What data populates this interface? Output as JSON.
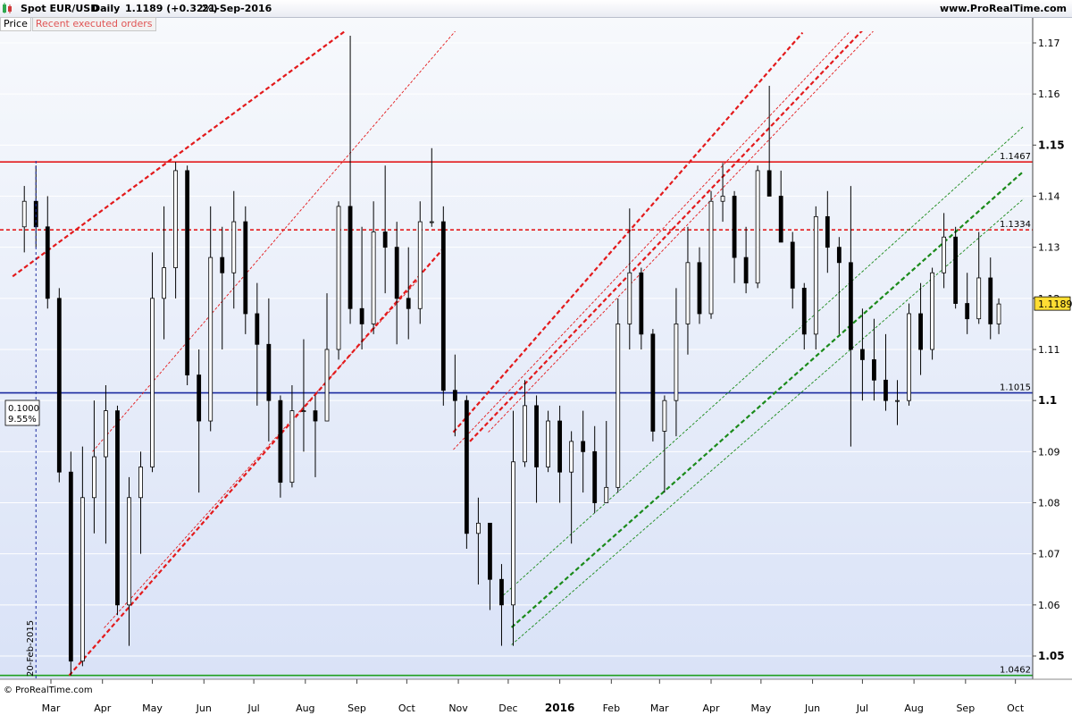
{
  "header": {
    "symbol": "Spot EUR/USD",
    "period": "Daily",
    "quote": "1.1189 (+0.32%)",
    "date": "21-Sep-2016",
    "site": "www.ProRealTime.com",
    "logo_icon": "candlestick-chart-icon"
  },
  "legend": {
    "price": "Price",
    "orders": "Recent executed orders"
  },
  "copyright": "© ProRealTime.com",
  "colors": {
    "support_red": "#e31a1c",
    "channel_green": "#1a8a1a",
    "blue_line": "#1a2aa0",
    "bottom_green": "#1fa01f",
    "candles": "#000000",
    "last_price_bg": "#ffdd33"
  },
  "chart_data": {
    "type": "candlestick",
    "title": "Spot EUR/USD Daily",
    "ylim": [
      1.0462,
      1.1745
    ],
    "yticks": [
      1.05,
      1.06,
      1.07,
      1.08,
      1.09,
      1.1,
      1.11,
      1.12,
      1.13,
      1.14,
      1.15,
      1.16,
      1.17
    ],
    "yticks_bold": [
      1.05,
      1.1,
      1.15
    ],
    "xticks": [
      {
        "label": "Mar",
        "date": "2015-03"
      },
      {
        "label": "Apr",
        "date": "2015-04"
      },
      {
        "label": "May",
        "date": "2015-05"
      },
      {
        "label": "Jun",
        "date": "2015-06"
      },
      {
        "label": "Jul",
        "date": "2015-07"
      },
      {
        "label": "Aug",
        "date": "2015-08"
      },
      {
        "label": "Sep",
        "date": "2015-09"
      },
      {
        "label": "Oct",
        "date": "2015-10"
      },
      {
        "label": "Nov",
        "date": "2015-11"
      },
      {
        "label": "Dec",
        "date": "2015-12"
      },
      {
        "label": "2016",
        "date": "2016-01",
        "bold": true
      },
      {
        "label": "Feb",
        "date": "2016-02"
      },
      {
        "label": "Mar",
        "date": "2016-03"
      },
      {
        "label": "Apr",
        "date": "2016-04"
      },
      {
        "label": "May",
        "date": "2016-05"
      },
      {
        "label": "Jun",
        "date": "2016-06"
      },
      {
        "label": "Jul",
        "date": "2016-07"
      },
      {
        "label": "Aug",
        "date": "2016-08"
      },
      {
        "label": "Sep",
        "date": "2016-09"
      },
      {
        "label": "Oct",
        "date": "2016-10"
      }
    ],
    "last_price": 1.1189,
    "horizontal_levels": [
      {
        "value": 1.1467,
        "label": "1.1467",
        "style": "solid",
        "color": "red"
      },
      {
        "value": 1.1334,
        "label": "1.1334",
        "style": "dashed",
        "color": "red"
      },
      {
        "value": 1.1015,
        "label": "1.1015",
        "style": "solid",
        "color": "blue"
      },
      {
        "value": 1.0462,
        "label": "1.0462",
        "style": "solid",
        "color": "green"
      }
    ],
    "vertical_marker": {
      "date": "2015-02-20",
      "label": "20-Feb-2015"
    },
    "measure_box": {
      "line1": "0.1000",
      "line2": "9.55%"
    },
    "trend_lines": [
      {
        "color": "red",
        "style": "dashed-thick",
        "from": [
          "2015-02-06",
          1.1243
        ],
        "to": [
          "2015-09-03",
          1.1745
        ]
      },
      {
        "color": "red",
        "style": "dashed-thin",
        "from": [
          "2015-03-26",
          1.09
        ],
        "to": [
          "2015-11-05",
          1.1745
        ]
      },
      {
        "color": "red",
        "style": "dashed-thick",
        "from": [
          "2015-03-12",
          1.0462
        ],
        "to": [
          "2015-10-22",
          1.1294
        ]
      },
      {
        "color": "red",
        "style": "dashed-thin",
        "from": [
          "2015-04-02",
          1.0555
        ],
        "to": [
          "2015-10-08",
          1.1237
        ]
      },
      {
        "color": "red",
        "style": "dashed-thick",
        "from": [
          "2015-10-29",
          1.0938
        ],
        "to": [
          "2016-05-26",
          1.172
        ]
      },
      {
        "color": "red",
        "style": "dashed-thin",
        "from": [
          "2015-10-29",
          1.0904
        ],
        "to": [
          "2016-06-30",
          1.1745
        ]
      },
      {
        "color": "red",
        "style": "dashed-thick",
        "from": [
          "2015-11-05",
          1.091
        ],
        "to": [
          "2016-07-07",
          1.1745
        ]
      },
      {
        "color": "red",
        "style": "dashed-thin",
        "from": [
          "2015-11-19",
          1.0938
        ],
        "to": [
          "2016-07-14",
          1.1745
        ]
      },
      {
        "color": "green",
        "style": "dashed-thin",
        "from": [
          "2015-11-26",
          1.0613
        ],
        "to": [
          "2016-10-06",
          1.1537
        ]
      },
      {
        "color": "green",
        "style": "dashed-thick",
        "from": [
          "2015-12-03",
          1.0556
        ],
        "to": [
          "2016-10-06",
          1.1449
        ]
      },
      {
        "color": "green",
        "style": "dashed-thin",
        "from": [
          "2015-12-03",
          1.0522
        ],
        "to": [
          "2016-10-06",
          1.1395
        ]
      }
    ],
    "candles": [
      {
        "d": "2015-02-13",
        "o": 1.134,
        "h": 1.142,
        "l": 1.129,
        "c": 1.139
      },
      {
        "d": "2015-02-20",
        "o": 1.139,
        "h": 1.146,
        "l": 1.13,
        "c": 1.134
      },
      {
        "d": "2015-02-27",
        "o": 1.134,
        "h": 1.14,
        "l": 1.118,
        "c": 1.12
      },
      {
        "d": "2015-03-06",
        "o": 1.12,
        "h": 1.122,
        "l": 1.084,
        "c": 1.086
      },
      {
        "d": "2015-03-13",
        "o": 1.086,
        "h": 1.09,
        "l": 1.0462,
        "c": 1.049
      },
      {
        "d": "2015-03-20",
        "o": 1.049,
        "h": 1.091,
        "l": 1.048,
        "c": 1.081
      },
      {
        "d": "2015-03-27",
        "o": 1.081,
        "h": 1.1,
        "l": 1.074,
        "c": 1.089
      },
      {
        "d": "2015-04-03",
        "o": 1.089,
        "h": 1.103,
        "l": 1.072,
        "c": 1.098
      },
      {
        "d": "2015-04-10",
        "o": 1.098,
        "h": 1.099,
        "l": 1.058,
        "c": 1.06
      },
      {
        "d": "2015-04-17",
        "o": 1.06,
        "h": 1.085,
        "l": 1.052,
        "c": 1.081
      },
      {
        "d": "2015-04-24",
        "o": 1.081,
        "h": 1.09,
        "l": 1.07,
        "c": 1.087
      },
      {
        "d": "2015-05-01",
        "o": 1.087,
        "h": 1.129,
        "l": 1.086,
        "c": 1.12
      },
      {
        "d": "2015-05-08",
        "o": 1.12,
        "h": 1.138,
        "l": 1.112,
        "c": 1.126
      },
      {
        "d": "2015-05-15",
        "o": 1.126,
        "h": 1.1467,
        "l": 1.12,
        "c": 1.145
      },
      {
        "d": "2015-05-22",
        "o": 1.145,
        "h": 1.146,
        "l": 1.103,
        "c": 1.105
      },
      {
        "d": "2015-05-29",
        "o": 1.105,
        "h": 1.11,
        "l": 1.082,
        "c": 1.096
      },
      {
        "d": "2015-06-05",
        "o": 1.096,
        "h": 1.138,
        "l": 1.094,
        "c": 1.128
      },
      {
        "d": "2015-06-12",
        "o": 1.128,
        "h": 1.134,
        "l": 1.11,
        "c": 1.125
      },
      {
        "d": "2015-06-19",
        "o": 1.125,
        "h": 1.141,
        "l": 1.118,
        "c": 1.135
      },
      {
        "d": "2015-06-26",
        "o": 1.135,
        "h": 1.138,
        "l": 1.113,
        "c": 1.117
      },
      {
        "d": "2015-07-03",
        "o": 1.117,
        "h": 1.123,
        "l": 1.099,
        "c": 1.111
      },
      {
        "d": "2015-07-10",
        "o": 1.111,
        "h": 1.12,
        "l": 1.092,
        "c": 1.1
      },
      {
        "d": "2015-07-17",
        "o": 1.1,
        "h": 1.101,
        "l": 1.081,
        "c": 1.084
      },
      {
        "d": "2015-07-24",
        "o": 1.084,
        "h": 1.103,
        "l": 1.083,
        "c": 1.098
      },
      {
        "d": "2015-07-31",
        "o": 1.098,
        "h": 1.112,
        "l": 1.09,
        "c": 1.098
      },
      {
        "d": "2015-08-07",
        "o": 1.098,
        "h": 1.101,
        "l": 1.085,
        "c": 1.096
      },
      {
        "d": "2015-08-14",
        "o": 1.096,
        "h": 1.121,
        "l": 1.096,
        "c": 1.11
      },
      {
        "d": "2015-08-21",
        "o": 1.11,
        "h": 1.139,
        "l": 1.108,
        "c": 1.138
      },
      {
        "d": "2015-08-28",
        "o": 1.138,
        "h": 1.1714,
        "l": 1.115,
        "c": 1.118
      },
      {
        "d": "2015-09-04",
        "o": 1.118,
        "h": 1.134,
        "l": 1.11,
        "c": 1.115
      },
      {
        "d": "2015-09-11",
        "o": 1.115,
        "h": 1.139,
        "l": 1.113,
        "c": 1.133
      },
      {
        "d": "2015-09-18",
        "o": 1.133,
        "h": 1.146,
        "l": 1.121,
        "c": 1.13
      },
      {
        "d": "2015-09-25",
        "o": 1.13,
        "h": 1.135,
        "l": 1.111,
        "c": 1.12
      },
      {
        "d": "2015-10-02",
        "o": 1.12,
        "h": 1.13,
        "l": 1.112,
        "c": 1.118
      },
      {
        "d": "2015-10-09",
        "o": 1.118,
        "h": 1.139,
        "l": 1.115,
        "c": 1.135
      },
      {
        "d": "2015-10-16",
        "o": 1.135,
        "h": 1.1494,
        "l": 1.134,
        "c": 1.135
      },
      {
        "d": "2015-10-23",
        "o": 1.135,
        "h": 1.138,
        "l": 1.099,
        "c": 1.102
      },
      {
        "d": "2015-10-30",
        "o": 1.102,
        "h": 1.109,
        "l": 1.093,
        "c": 1.1
      },
      {
        "d": "2015-11-06",
        "o": 1.1,
        "h": 1.101,
        "l": 1.071,
        "c": 1.074
      },
      {
        "d": "2015-11-13",
        "o": 1.074,
        "h": 1.081,
        "l": 1.064,
        "c": 1.076
      },
      {
        "d": "2015-11-20",
        "o": 1.076,
        "h": 1.076,
        "l": 1.059,
        "c": 1.065
      },
      {
        "d": "2015-11-27",
        "o": 1.065,
        "h": 1.068,
        "l": 1.052,
        "c": 1.06
      },
      {
        "d": "2015-12-04",
        "o": 1.06,
        "h": 1.098,
        "l": 1.052,
        "c": 1.088
      },
      {
        "d": "2015-12-11",
        "o": 1.088,
        "h": 1.104,
        "l": 1.087,
        "c": 1.099
      },
      {
        "d": "2015-12-18",
        "o": 1.099,
        "h": 1.101,
        "l": 1.08,
        "c": 1.087
      },
      {
        "d": "2015-12-25",
        "o": 1.087,
        "h": 1.098,
        "l": 1.086,
        "c": 1.096
      },
      {
        "d": "2016-01-01",
        "o": 1.096,
        "h": 1.099,
        "l": 1.08,
        "c": 1.086
      },
      {
        "d": "2016-01-08",
        "o": 1.086,
        "h": 1.094,
        "l": 1.072,
        "c": 1.092
      },
      {
        "d": "2016-01-15",
        "o": 1.092,
        "h": 1.098,
        "l": 1.082,
        "c": 1.09
      },
      {
        "d": "2016-01-22",
        "o": 1.09,
        "h": 1.095,
        "l": 1.078,
        "c": 1.08
      },
      {
        "d": "2016-01-29",
        "o": 1.08,
        "h": 1.096,
        "l": 1.08,
        "c": 1.083
      },
      {
        "d": "2016-02-05",
        "o": 1.083,
        "h": 1.12,
        "l": 1.082,
        "c": 1.115
      },
      {
        "d": "2016-02-12",
        "o": 1.115,
        "h": 1.1376,
        "l": 1.11,
        "c": 1.125
      },
      {
        "d": "2016-02-19",
        "o": 1.125,
        "h": 1.126,
        "l": 1.11,
        "c": 1.113
      },
      {
        "d": "2016-02-26",
        "o": 1.113,
        "h": 1.114,
        "l": 1.092,
        "c": 1.094
      },
      {
        "d": "2016-03-04",
        "o": 1.094,
        "h": 1.101,
        "l": 1.082,
        "c": 1.1
      },
      {
        "d": "2016-03-11",
        "o": 1.1,
        "h": 1.122,
        "l": 1.093,
        "c": 1.115
      },
      {
        "d": "2016-03-18",
        "o": 1.115,
        "h": 1.134,
        "l": 1.109,
        "c": 1.127
      },
      {
        "d": "2016-03-25",
        "o": 1.127,
        "h": 1.13,
        "l": 1.115,
        "c": 1.117
      },
      {
        "d": "2016-04-01",
        "o": 1.117,
        "h": 1.141,
        "l": 1.116,
        "c": 1.139
      },
      {
        "d": "2016-04-08",
        "o": 1.139,
        "h": 1.1465,
        "l": 1.135,
        "c": 1.14
      },
      {
        "d": "2016-04-15",
        "o": 1.14,
        "h": 1.141,
        "l": 1.123,
        "c": 1.128
      },
      {
        "d": "2016-04-22",
        "o": 1.128,
        "h": 1.134,
        "l": 1.121,
        "c": 1.123
      },
      {
        "d": "2016-04-29",
        "o": 1.123,
        "h": 1.146,
        "l": 1.122,
        "c": 1.145
      },
      {
        "d": "2016-05-06",
        "o": 1.145,
        "h": 1.1616,
        "l": 1.14,
        "c": 1.14
      },
      {
        "d": "2016-05-13",
        "o": 1.14,
        "h": 1.145,
        "l": 1.131,
        "c": 1.131
      },
      {
        "d": "2016-05-20",
        "o": 1.131,
        "h": 1.133,
        "l": 1.118,
        "c": 1.122
      },
      {
        "d": "2016-05-27",
        "o": 1.122,
        "h": 1.123,
        "l": 1.11,
        "c": 1.113
      },
      {
        "d": "2016-06-03",
        "o": 1.113,
        "h": 1.138,
        "l": 1.11,
        "c": 1.136
      },
      {
        "d": "2016-06-10",
        "o": 1.136,
        "h": 1.141,
        "l": 1.125,
        "c": 1.13
      },
      {
        "d": "2016-06-17",
        "o": 1.13,
        "h": 1.132,
        "l": 1.113,
        "c": 1.127
      },
      {
        "d": "2016-06-24",
        "o": 1.127,
        "h": 1.142,
        "l": 1.091,
        "c": 1.11
      },
      {
        "d": "2016-07-01",
        "o": 1.11,
        "h": 1.118,
        "l": 1.1,
        "c": 1.108
      },
      {
        "d": "2016-07-08",
        "o": 1.108,
        "h": 1.116,
        "l": 1.1,
        "c": 1.104
      },
      {
        "d": "2016-07-15",
        "o": 1.104,
        "h": 1.113,
        "l": 1.098,
        "c": 1.1
      },
      {
        "d": "2016-07-22",
        "o": 1.1,
        "h": 1.104,
        "l": 1.0952,
        "c": 1.1
      },
      {
        "d": "2016-07-29",
        "o": 1.1,
        "h": 1.119,
        "l": 1.099,
        "c": 1.117
      },
      {
        "d": "2016-08-05",
        "o": 1.117,
        "h": 1.123,
        "l": 1.105,
        "c": 1.11
      },
      {
        "d": "2016-08-12",
        "o": 1.11,
        "h": 1.126,
        "l": 1.108,
        "c": 1.125
      },
      {
        "d": "2016-08-19",
        "o": 1.125,
        "h": 1.1367,
        "l": 1.122,
        "c": 1.132
      },
      {
        "d": "2016-08-26",
        "o": 1.132,
        "h": 1.134,
        "l": 1.118,
        "c": 1.119
      },
      {
        "d": "2016-09-02",
        "o": 1.119,
        "h": 1.125,
        "l": 1.113,
        "c": 1.116
      },
      {
        "d": "2016-09-09",
        "o": 1.116,
        "h": 1.133,
        "l": 1.115,
        "c": 1.124
      },
      {
        "d": "2016-09-16",
        "o": 1.124,
        "h": 1.128,
        "l": 1.112,
        "c": 1.115
      },
      {
        "d": "2016-09-21",
        "o": 1.115,
        "h": 1.12,
        "l": 1.113,
        "c": 1.1189
      }
    ]
  }
}
